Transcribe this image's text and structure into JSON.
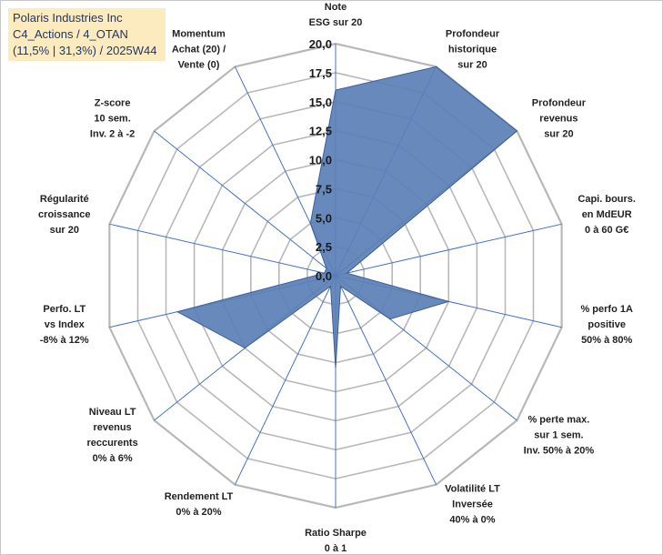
{
  "title": {
    "line1": "Polaris Industries Inc",
    "line2": "C4_Actions / 4_OTAN",
    "line3": "(11,5% | 31,3%) / 2025W44"
  },
  "chart_data": {
    "type": "radar",
    "ylim": [
      0,
      20
    ],
    "ticks": [
      "0,0",
      "2,5",
      "5,0",
      "7,5",
      "10,0",
      "12,5",
      "15,0",
      "17,5",
      "20,0"
    ],
    "axes": [
      {
        "label": [
          "Note",
          "ESG sur 20"
        ],
        "value": 16
      },
      {
        "label": [
          "Profondeur",
          "historique",
          "sur 20"
        ],
        "value": 20
      },
      {
        "label": [
          "Profondeur",
          "revenus",
          "sur 20"
        ],
        "value": 20
      },
      {
        "label": [
          "Capi. bours.",
          "en MdEUR",
          "0 à 60 G€"
        ],
        "value": 1
      },
      {
        "label": [
          "% perfo 1A",
          "positive",
          "50% à 80%"
        ],
        "value": 10
      },
      {
        "label": [
          "% perte max.",
          "sur 1 sem.",
          "Inv. 50% à 20%"
        ],
        "value": 6
      },
      {
        "label": [
          "Volatilité LT",
          "Inversée",
          "40% à 0%"
        ],
        "value": 1
      },
      {
        "label": [
          "Ratio Sharpe",
          "0 à 1"
        ],
        "value": 8
      },
      {
        "label": [
          "Rendement LT",
          "0% à 20%"
        ],
        "value": 1
      },
      {
        "label": [
          "Niveau LT",
          "revenus",
          "reccurents",
          "0% à 6%"
        ],
        "value": 10
      },
      {
        "label": [
          "Perfo. LT",
          "vs Index",
          "-8% à 12%"
        ],
        "value": 14
      },
      {
        "label": [
          "Régularité",
          "croissance",
          "sur 20"
        ],
        "value": 1
      },
      {
        "label": [
          "Z-score",
          "10 sem.",
          "Inv. 2 à -2"
        ],
        "value": 1
      },
      {
        "label": [
          "Momentum",
          "Achat (20) /",
          "Vente (0)"
        ],
        "value": 5
      }
    ],
    "fill_color": "#5b7fb5",
    "line_color": "#3c5f96",
    "grid_color": "#b8b8b8",
    "spoke_color": "#4472c4"
  }
}
